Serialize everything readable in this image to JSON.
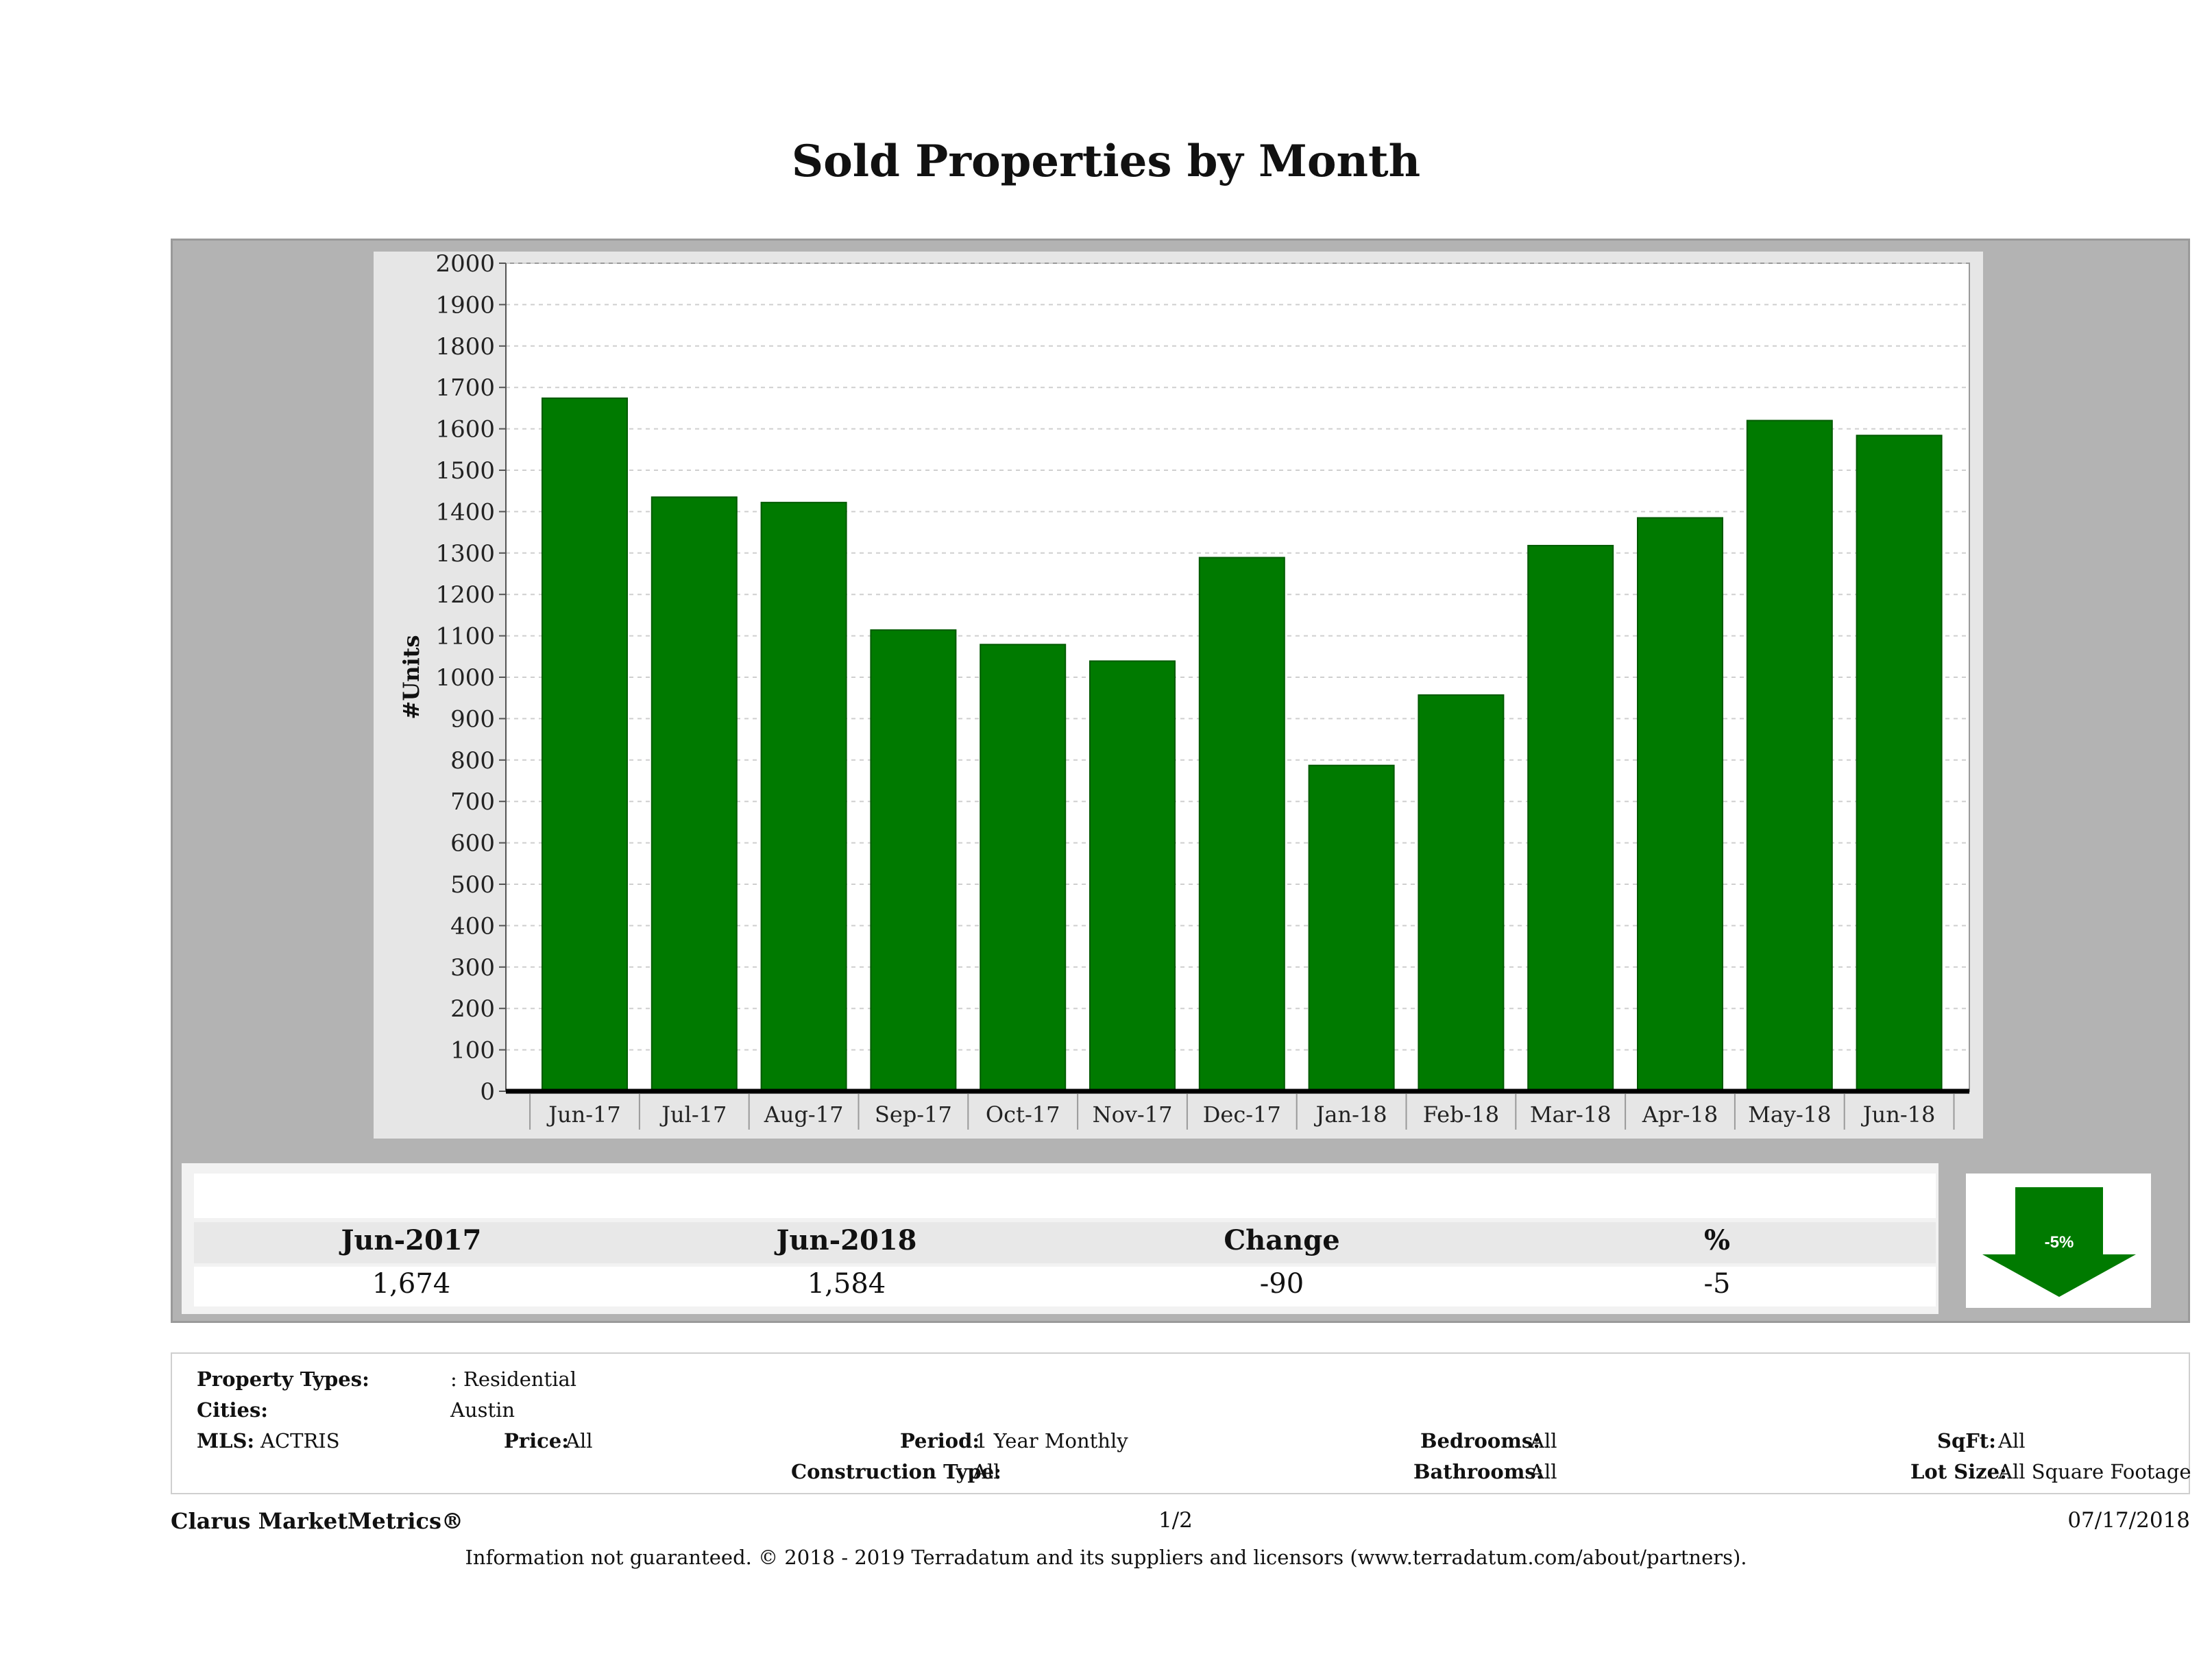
{
  "title": "Sold Properties by Month",
  "chart_data": {
    "type": "bar",
    "categories": [
      "Jun-17",
      "Jul-17",
      "Aug-17",
      "Sep-17",
      "Oct-17",
      "Nov-17",
      "Dec-17",
      "Jan-18",
      "Feb-18",
      "Mar-18",
      "Apr-18",
      "May-18",
      "Jun-18"
    ],
    "values": [
      1674,
      1435,
      1422,
      1114,
      1079,
      1039,
      1289,
      787,
      957,
      1318,
      1385,
      1620,
      1584
    ],
    "ylabel": "#Units",
    "ylim": [
      0,
      2000
    ],
    "yticks": [
      "0",
      "100",
      "200",
      "300",
      "400",
      "500",
      "600",
      "700",
      "800",
      "900",
      "1000",
      "1100",
      "1200",
      "1300",
      "1400",
      "1500",
      "1600",
      "1700",
      "1800",
      "1900",
      "2000"
    ],
    "bar_color": "#007a00",
    "grid": true
  },
  "stats": {
    "headers": [
      "Jun-2017",
      "Jun-2018",
      "Change",
      "%"
    ],
    "values": [
      "1,674",
      "1,584",
      "-90",
      "-5"
    ],
    "badge": "-5%",
    "badge_color": "#007a00"
  },
  "criteria": {
    "property_types_label": "Property Types:",
    "property_types_value": ": Residential",
    "cities_label": "Cities:",
    "cities_value": "Austin",
    "mls_label": "MLS:",
    "mls_value": "ACTRIS",
    "price_label": "Price:",
    "price_value": "All",
    "period_label": "Period:",
    "period_value": "1 Year Monthly",
    "construction_label": "Construction Type:",
    "construction_value": "All",
    "bedrooms_label": "Bedrooms:",
    "bedrooms_value": "All",
    "bathrooms_label": "Bathrooms:",
    "bathrooms_value": "All",
    "sqft_label": "SqFt:",
    "sqft_value": "All",
    "lotsize_label": "Lot Size:",
    "lotsize_value": "All Square Footage"
  },
  "footer": {
    "brand": "Clarus MarketMetrics®",
    "page": "1/2",
    "date": "07/17/2018",
    "disclaimer": "Information not guaranteed. © 2018 - 2019 Terradatum and its suppliers and licensors (www.terradatum.com/about/partners)."
  }
}
